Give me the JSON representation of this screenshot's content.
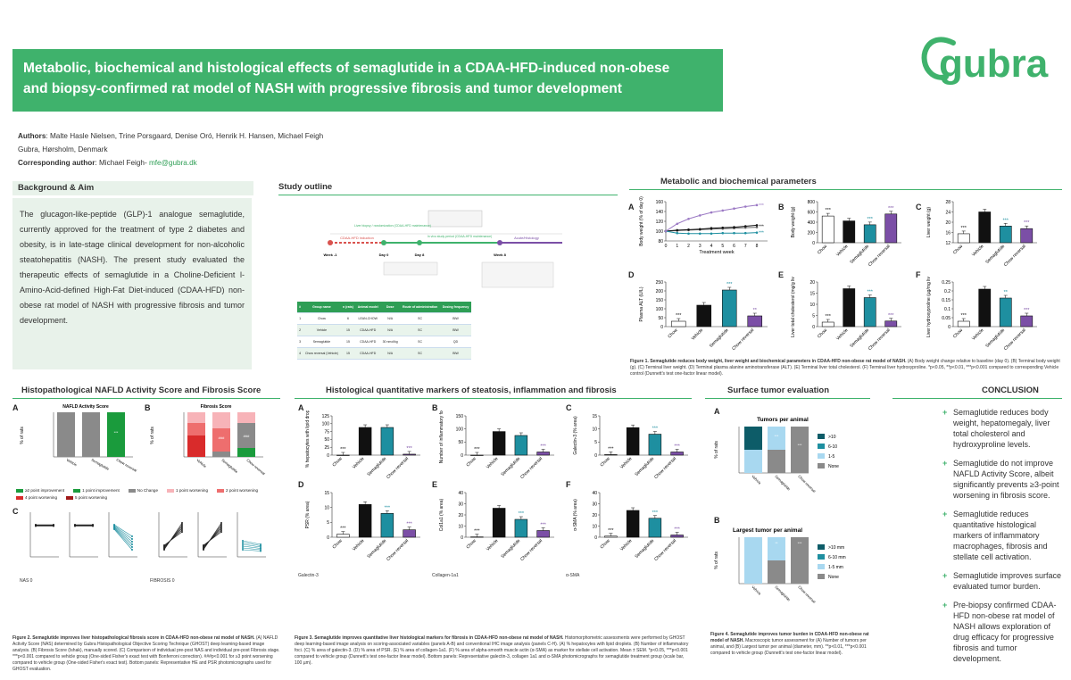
{
  "title": {
    "line1": "Metabolic, biochemical and histological effects of semaglutide in a CDAA-HFD-induced non-obese",
    "line2": "and biopsy-confirmed rat model of NASH with progressive fibrosis and tumor development"
  },
  "logo_text": "gubra",
  "authors": {
    "label": "Authors",
    "names": ": Malte Hasle Nielsen, Trine Porsgaard, Denise Oró, Henrik H. Hansen, Michael Feigh",
    "affiliation": "Gubra, Hørsholm, Denmark",
    "corr_label": "Corresponding author",
    "corr_name": ": Michael Feigh- ",
    "corr_email": "mfe@gubra.dk"
  },
  "background": {
    "heading": "Background & Aim",
    "text": "The glucagon-like-peptide (GLP)-1 analogue semaglutide, currently approved for the treatment of type 2 diabetes and obesity, is in late-stage clinical development for non-alcoholic steatohepatitis (NASH). The present study evaluated the therapeutic effects of semaglutide in a Choline-Deficient l-Amino-Acid-defined High-Fat Diet-induced (CDAA-HFD) non-obese rat model of NASH with progressive fibrosis and tumor development."
  },
  "study_outline": {
    "heading": "Study outline",
    "timeline_labels": [
      "CDAA-HFD induction",
      "Liver biopsy / randomization (CDAA-HFD maintenance)",
      "In vivo study period (CDAA-HFD maintenance)",
      "Acute/Histology"
    ],
    "weeks": [
      "Week -1",
      "Day 0",
      "Day 8",
      "Week 8"
    ],
    "table_headers": [
      "#",
      "Group name",
      "n (rats)",
      "Animal model",
      "Dose",
      "Route of administration",
      "Dosing frequency"
    ],
    "table_rows": [
      [
        "1",
        "Chow",
        "6",
        "LEAN-CHOW",
        "N/A",
        "SC",
        "BIW"
      ],
      [
        "2",
        "Vehicle",
        "15",
        "CDAA-HFD",
        "N/A",
        "SC",
        "BIW"
      ],
      [
        "3",
        "Semaglutide",
        "15",
        "CDAA-HFD",
        "30 nmol/kg",
        "SC",
        "QD"
      ],
      [
        "4",
        "Chow reversal (Vehicle)",
        "15",
        "CDAA-HFD",
        "N/A",
        "SC",
        "BIW"
      ]
    ]
  },
  "metabolic": {
    "heading": "Metabolic and biochemical parameters",
    "caption_title": "Figure 1. Semaglutide reduces body weight, liver weight and biochemical parameters in CDAA-HFD non-obese rat model of NASH.",
    "caption_text": " (A) Body weight change relative to baseline (day 0). (B) Terminal body weight (g). (C) Terminal liver weight. (D) Terminal plasma alanine aminotransferase (ALT). (E) Terminal liver total cholesterol. (F) Terminal liver hydroxyproline. *p<0.05, **p<0.01, ***p<0.001 compared to corresponding Vehicle control (Dunnett's test one-factor linear model)."
  },
  "histo_nafld": {
    "heading": "Histopathological NAFLD Activity Score and Fibrosis Score",
    "chart_a_title": "NAFLD Activity Score",
    "chart_b_title": "Fibrosis Score",
    "legend": [
      "≥2 point improvement",
      "1 point improvement",
      "No Change",
      "1 point worsening",
      "2 point worsening",
      "4 point worsening",
      "5 point worsening"
    ],
    "caption_title": "Figure 2. Semaglutide improves liver histopathological fibrosis score in CDAA-HFD non-obese rat model of NASH.",
    "caption_text": " (A) NAFLD Activity Score (NAS) determined by Gubra Histopathological Objective Scoring Technique (GHOST) deep learning-based image analysis. (B) Fibrosis Score (Ishak), manually scored. (C) Comparison of individual pre-post NAS and individual pre-post Fibrosis stage. ***p<0.001 compared to vehicle group (One-sided Fisher's exact test with Bonferroni correction). ###p<0.001 for ≥3 point worsening compared to vehicle group (One-sided Fisher's exact test). Bottom panels: Representative HE and PSR photomicrographs used for GHOST evaluation.",
    "photo_labels": [
      "NAS 0",
      "FIBROSIS 0"
    ]
  },
  "histo_quant": {
    "heading": "Histological quantitative markers of steatosis, inflammation and fibrosis",
    "photo_labels": [
      "Galectin-3",
      "Collagen-1a1",
      "α-SMA"
    ],
    "caption_title": "Figure 3. Semaglutide improves quantitative liver histological markers for fibrosis in CDAA-HFD non-obese rat model of NASH.",
    "caption_text": " Histomorphometric assessments were performed by GHOST deep learning-based image analysis on scoring-associated variables (panels A-B) and conventional IHC image analysis (panels C-H). (A) % hepatocytes with lipid droplets. (B) Number of inflammatory foci. (C) % area of galectin-3. (D) % area of PSR. (E) % area of collagen-1a1. (F) % area of alpha-smooth muscle actin (α-SMA) as marker for stellate cell activation. Mean ± SEM. *p<0.05, ***p<0.001 compared to vehicle group (Dunnett's test one-factor linear model). Bottom panels: Representative galectin-3, collagen 1a1 and α-SMA photomicrographs for semaglutide treatment group (scale bar, 100 µm)."
  },
  "tumor": {
    "heading": "Surface tumor evaluation",
    "chart_a_title": "Tumors per animal",
    "chart_b_title": "Largest tumor per animal",
    "legend_a": [
      ">10",
      "6-10",
      "1-5",
      "None"
    ],
    "legend_b": [
      ">10 mm",
      "6-10 mm",
      "1-5 mm",
      "None"
    ],
    "caption_title": "Figure 4. Semaglutide improves tumor burden in CDAA-HFD non-obese rat model of NASH.",
    "caption_text": " Macroscopic tumor assessment for (A) Number of tumors per animal, and (B) Largest tumor per animal (diameter, mm). **p<0.01, ***p<0.001 compared to vehicle group (Dunnett's test one-factor linear model)."
  },
  "conclusion": {
    "heading": "CONCLUSION",
    "items": [
      "Semaglutide reduces body weight, hepatomegaly, liver total cholesterol and hydroxyproline levels.",
      "Semaglutide do not improve NAFLD Activity Score, albeit significantly prevents ≥3-point worsening in fibrosis score.",
      "Semaglutide reduces quantitative histological markers of inflammatory macrophages, fibrosis and stellate cell activation.",
      "Semaglutide improves surface evaluated tumor burden.",
      "Pre-biopsy confirmed CDAA-HFD non-obese rat model of NASH allows exploration of drug efficacy for progressive fibrosis and tumor development."
    ]
  },
  "colors": {
    "brand_green": "#3fb26c",
    "chow": "#ffffff",
    "vehicle": "#111111",
    "semaglutide": "#1e8fa0",
    "chow_reversal": "#7b4fa6"
  },
  "chart_data": [
    {
      "id": "fig1A",
      "type": "line",
      "title": "",
      "xlabel": "Treatment week",
      "ylabel": "Body weight (% of day 0)",
      "x": [
        0,
        1,
        2,
        3,
        4,
        5,
        6,
        7,
        8
      ],
      "ylim": [
        80,
        160
      ],
      "yticks": [
        80,
        100,
        120,
        140,
        160
      ],
      "series": [
        {
          "name": "Chow",
          "color": "#666666",
          "values": [
            100,
            101,
            102,
            103,
            104,
            105,
            106,
            107,
            108
          ]
        },
        {
          "name": "Vehicle",
          "color": "#111111",
          "values": [
            100,
            102,
            103,
            104,
            106,
            107,
            108,
            110,
            112
          ]
        },
        {
          "name": "Semaglutide",
          "color": "#1e8fa0",
          "values": [
            100,
            96,
            95,
            95,
            95,
            96,
            96,
            96,
            97
          ]
        },
        {
          "name": "Chow reversal",
          "color": "#9b79c4",
          "values": [
            100,
            115,
            125,
            132,
            138,
            142,
            146,
            150,
            153
          ]
        }
      ],
      "labels": [
        "***",
        "***",
        "***"
      ]
    },
    {
      "id": "fig1B",
      "type": "bar",
      "ylabel": "Body weight (g)",
      "categories": [
        "Chow",
        "Vehicle",
        "Semaglutide",
        "Chow reversal"
      ],
      "values": [
        520,
        425,
        350,
        560
      ],
      "ylim": [
        0,
        800
      ],
      "yticks": [
        0,
        200,
        400,
        600,
        800
      ],
      "labels": [
        "***",
        "",
        "***",
        "***"
      ]
    },
    {
      "id": "fig1C",
      "type": "bar",
      "ylabel": "Liver weight (g)",
      "categories": [
        "Chow",
        "Vehicle",
        "Semaglutide",
        "Chow reversal"
      ],
      "values": [
        15.5,
        24,
        18.5,
        17.5
      ],
      "ylim": [
        12,
        28
      ],
      "yticks": [
        12,
        16,
        20,
        24,
        28
      ],
      "labels": [
        "***",
        "",
        "***",
        "***"
      ]
    },
    {
      "id": "fig1D",
      "type": "bar",
      "ylabel": "Plasma ALT (U/L)",
      "categories": [
        "Chow",
        "Vehicle",
        "Semaglutide",
        "Chow reversal"
      ],
      "values": [
        30,
        120,
        205,
        60
      ],
      "ylim": [
        0,
        250
      ],
      "yticks": [
        0,
        50,
        100,
        150,
        200,
        250
      ],
      "labels": [
        "***",
        "",
        "***",
        "**"
      ]
    },
    {
      "id": "fig1E",
      "type": "bar",
      "ylabel": "Liver total cholesterol (mg/g liver)",
      "categories": [
        "Chow",
        "Vehicle",
        "Semaglutide",
        "Chow reversal"
      ],
      "values": [
        2,
        17,
        13,
        2.5
      ],
      "ylim": [
        0,
        20
      ],
      "yticks": [
        0,
        5,
        10,
        15,
        20
      ],
      "labels": [
        "***",
        "",
        "***",
        "***"
      ]
    },
    {
      "id": "fig1F",
      "type": "bar",
      "ylabel": "Liver hydroxyproline (µg/mg liver)",
      "categories": [
        "Chow",
        "Vehicle",
        "Semaglutide",
        "Chow reversal"
      ],
      "values": [
        0.03,
        0.21,
        0.16,
        0.06
      ],
      "ylim": [
        0,
        0.25
      ],
      "yticks": [
        0.0,
        0.05,
        0.1,
        0.15,
        0.2,
        0.25
      ],
      "labels": [
        "***",
        "",
        "**",
        "***"
      ]
    },
    {
      "id": "fig3A",
      "type": "bar",
      "ylabel": "% hepatocytes with lipid droplets",
      "categories": [
        "Chow",
        "Vehicle",
        "Semaglutide",
        "Chow reversal"
      ],
      "values": [
        0,
        88,
        88,
        3
      ],
      "ylim": [
        0,
        125
      ],
      "yticks": [
        0,
        25,
        50,
        75,
        100,
        125
      ],
      "labels": [
        "***",
        "",
        "",
        "***"
      ]
    },
    {
      "id": "fig3B",
      "type": "bar",
      "ylabel": "Number of inflammatory foci",
      "categories": [
        "Chow",
        "Vehicle",
        "Semaglutide",
        "Chow reversal"
      ],
      "values": [
        0,
        90,
        75,
        12
      ],
      "ylim": [
        0,
        150
      ],
      "yticks": [
        0,
        50,
        100,
        150
      ],
      "labels": [
        "***",
        "",
        "",
        "***"
      ]
    },
    {
      "id": "fig3C",
      "type": "bar",
      "ylabel": "Galectin-3 (% area)",
      "categories": [
        "Chow",
        "Vehicle",
        "Semaglutide",
        "Chow reversal"
      ],
      "values": [
        0.2,
        10.5,
        8,
        1.2
      ],
      "ylim": [
        0,
        15
      ],
      "yticks": [
        0,
        5,
        10,
        15
      ],
      "labels": [
        "***",
        "",
        "***",
        "***"
      ]
    },
    {
      "id": "fig3D",
      "type": "bar",
      "ylabel": "PSR (% area)",
      "categories": [
        "Chow",
        "Vehicle",
        "Semaglutide",
        "Chow reversal"
      ],
      "values": [
        1,
        11,
        8,
        2.5
      ],
      "ylim": [
        0,
        15
      ],
      "yticks": [
        0,
        5,
        10,
        15
      ],
      "labels": [
        "***",
        "",
        "***",
        "***"
      ]
    },
    {
      "id": "fig3E",
      "type": "bar",
      "ylabel": "Col1a1 (% area)",
      "categories": [
        "Chow",
        "Vehicle",
        "Semaglutide",
        "Chow reversal"
      ],
      "values": [
        0.3,
        26,
        16,
        6
      ],
      "ylim": [
        0,
        40
      ],
      "yticks": [
        0,
        10,
        20,
        30,
        40
      ],
      "labels": [
        "***",
        "",
        "***",
        "***"
      ]
    },
    {
      "id": "fig3F",
      "type": "bar",
      "ylabel": "α-SMA (% area)",
      "categories": [
        "Chow",
        "Vehicle",
        "Semaglutide",
        "Chow reversal"
      ],
      "values": [
        1,
        24,
        17,
        2
      ],
      "ylim": [
        0,
        40
      ],
      "yticks": [
        0,
        10,
        20,
        30,
        40
      ],
      "labels": [
        "***",
        "",
        "***",
        "***"
      ]
    }
  ]
}
